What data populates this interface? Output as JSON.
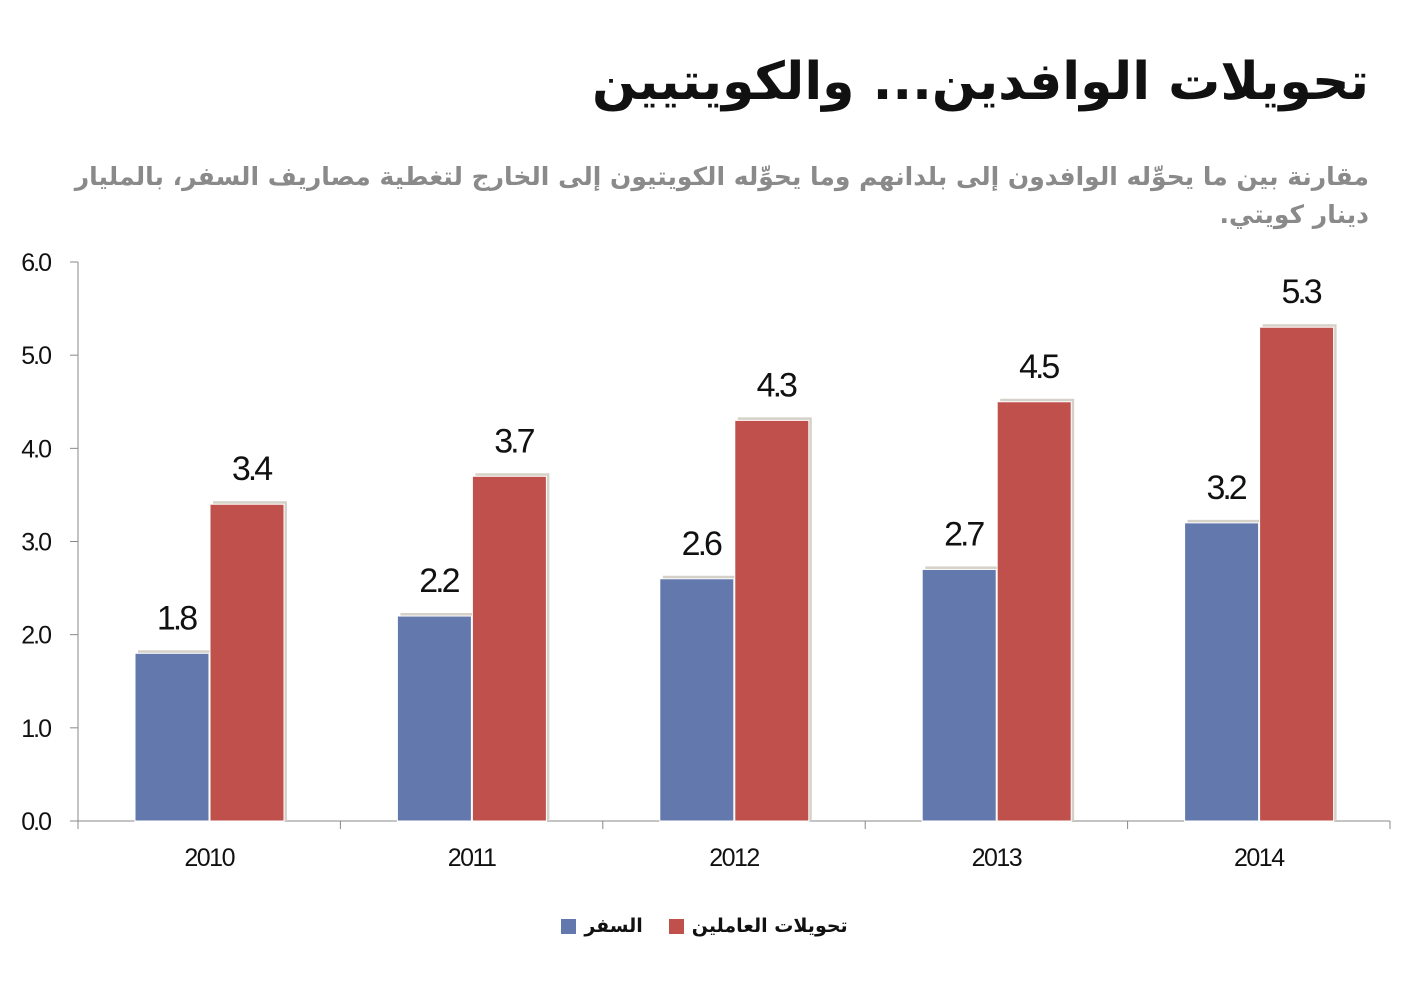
{
  "chart_data": {
    "type": "bar",
    "title": "تحويلات الوافدين... والكويتيين",
    "subtitle": "مقارنة بين ما يحوِّله الوافدون إلى بلدانهم وما يحوِّله الكويتيون إلى الخارج لتغطية مصاريف السفر، بالمليار دينار كويتي.",
    "categories": [
      "2010",
      "2011",
      "2012",
      "2013",
      "2014"
    ],
    "series": [
      {
        "name": "السفر",
        "color": "#6379ad",
        "values": [
          1.8,
          2.2,
          2.6,
          2.7,
          3.2
        ],
        "labels": [
          "1.8",
          "2.2",
          "2.6",
          "2.7",
          "3.2"
        ]
      },
      {
        "name": "تحويلات العاملين",
        "color": "#bf504b",
        "values": [
          3.4,
          3.7,
          4.3,
          4.5,
          5.3
        ],
        "labels": [
          "3.4",
          "3.7",
          "4.3",
          "4.5",
          "5.3"
        ]
      }
    ],
    "yticks": [
      "0.0",
      "1.0",
      "2.0",
      "3.0",
      "4.0",
      "5.0",
      "6.0"
    ],
    "ylim": [
      0,
      6
    ],
    "xlabel": "",
    "ylabel": "",
    "grid": false,
    "legend_position": "bottom-center"
  }
}
